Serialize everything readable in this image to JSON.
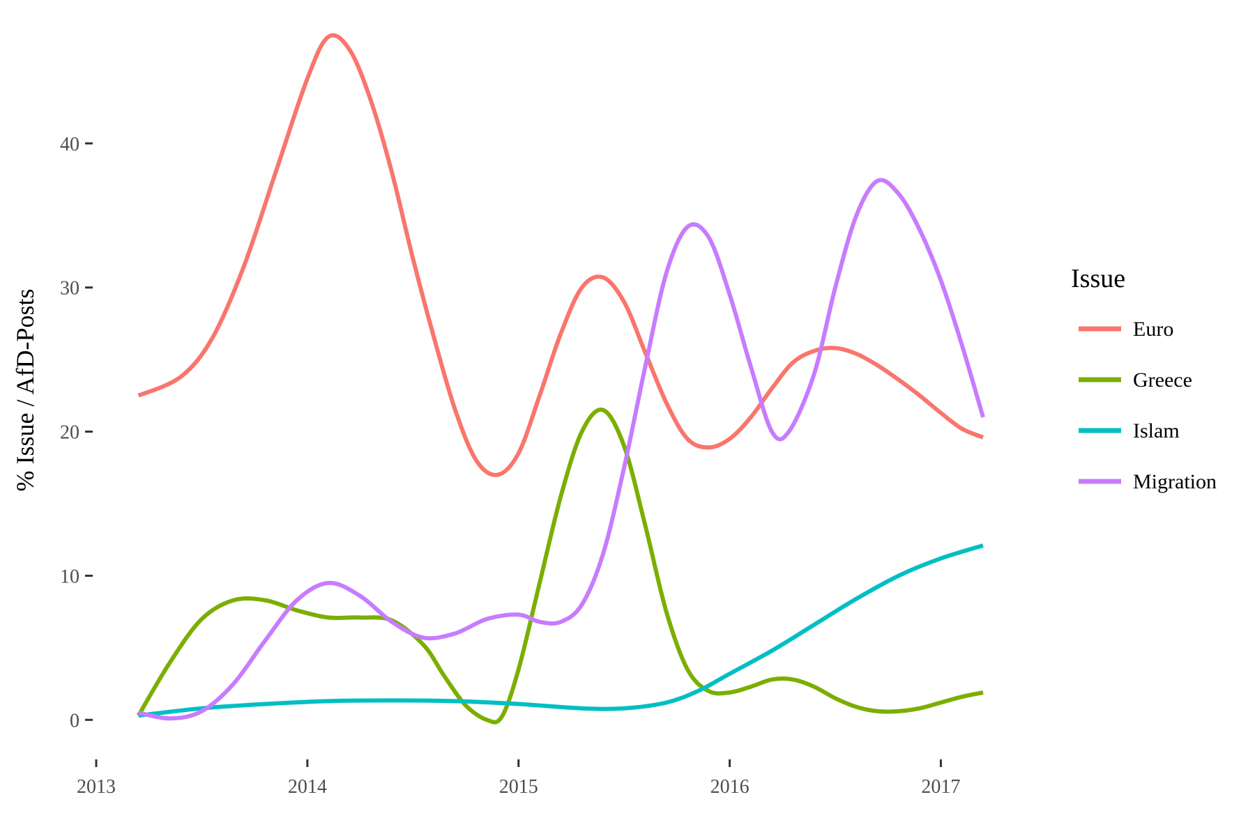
{
  "chart_data": {
    "type": "line",
    "title": "",
    "xlabel": "",
    "ylabel": "% Issue / AfD-Posts",
    "xlim": [
      2013,
      2017.2
    ],
    "ylim": [
      -2.5,
      48.5
    ],
    "x_ticks": [
      2013,
      2014,
      2015,
      2016,
      2017
    ],
    "x_tick_labels": [
      "2013",
      "2014",
      "2015",
      "2016",
      "2017"
    ],
    "y_ticks": [
      0,
      10,
      20,
      30,
      40
    ],
    "y_tick_labels": [
      "0",
      "10",
      "20",
      "30",
      "40"
    ],
    "grid": false,
    "legend": {
      "title": "Issue",
      "placement": "right"
    },
    "series": [
      {
        "name": "Euro",
        "color": "#F8766D",
        "points": [
          [
            2013.2,
            22.5
          ],
          [
            2013.4,
            23.8
          ],
          [
            2013.55,
            26.5
          ],
          [
            2013.7,
            31.5
          ],
          [
            2013.85,
            38.0
          ],
          [
            2014.0,
            44.5
          ],
          [
            2014.1,
            47.4
          ],
          [
            2014.2,
            46.5
          ],
          [
            2014.3,
            43.0
          ],
          [
            2014.4,
            38.0
          ],
          [
            2014.5,
            32.0
          ],
          [
            2014.6,
            26.5
          ],
          [
            2014.7,
            21.5
          ],
          [
            2014.8,
            18.0
          ],
          [
            2014.9,
            17.0
          ],
          [
            2015.0,
            18.5
          ],
          [
            2015.1,
            22.5
          ],
          [
            2015.2,
            26.8
          ],
          [
            2015.3,
            30.0
          ],
          [
            2015.4,
            30.7
          ],
          [
            2015.5,
            29.0
          ],
          [
            2015.6,
            25.5
          ],
          [
            2015.7,
            22.0
          ],
          [
            2015.8,
            19.5
          ],
          [
            2015.9,
            18.9
          ],
          [
            2016.0,
            19.5
          ],
          [
            2016.1,
            21.0
          ],
          [
            2016.2,
            23.0
          ],
          [
            2016.3,
            24.8
          ],
          [
            2016.4,
            25.6
          ],
          [
            2016.5,
            25.8
          ],
          [
            2016.6,
            25.4
          ],
          [
            2016.7,
            24.6
          ],
          [
            2016.8,
            23.6
          ],
          [
            2016.9,
            22.5
          ],
          [
            2017.0,
            21.3
          ],
          [
            2017.1,
            20.2
          ],
          [
            2017.2,
            19.6
          ]
        ]
      },
      {
        "name": "Greece",
        "color": "#7CAE00",
        "points": [
          [
            2013.2,
            0.3
          ],
          [
            2013.35,
            4.0
          ],
          [
            2013.5,
            7.0
          ],
          [
            2013.65,
            8.3
          ],
          [
            2013.8,
            8.3
          ],
          [
            2013.95,
            7.6
          ],
          [
            2014.1,
            7.1
          ],
          [
            2014.25,
            7.1
          ],
          [
            2014.4,
            6.9
          ],
          [
            2014.55,
            5.2
          ],
          [
            2014.65,
            3.0
          ],
          [
            2014.75,
            1.0
          ],
          [
            2014.85,
            0.0
          ],
          [
            2014.92,
            0.2
          ],
          [
            2015.0,
            3.5
          ],
          [
            2015.1,
            9.5
          ],
          [
            2015.2,
            15.5
          ],
          [
            2015.3,
            20.0
          ],
          [
            2015.4,
            21.5
          ],
          [
            2015.5,
            19.0
          ],
          [
            2015.6,
            13.5
          ],
          [
            2015.7,
            7.5
          ],
          [
            2015.8,
            3.5
          ],
          [
            2015.9,
            2.0
          ],
          [
            2016.0,
            1.9
          ],
          [
            2016.1,
            2.3
          ],
          [
            2016.2,
            2.8
          ],
          [
            2016.3,
            2.8
          ],
          [
            2016.4,
            2.3
          ],
          [
            2016.5,
            1.5
          ],
          [
            2016.6,
            0.9
          ],
          [
            2016.7,
            0.6
          ],
          [
            2016.8,
            0.6
          ],
          [
            2016.9,
            0.8
          ],
          [
            2017.0,
            1.2
          ],
          [
            2017.1,
            1.6
          ],
          [
            2017.2,
            1.9
          ]
        ]
      },
      {
        "name": "Islam",
        "color": "#00BFC4",
        "points": [
          [
            2013.2,
            0.3
          ],
          [
            2013.5,
            0.8
          ],
          [
            2013.8,
            1.1
          ],
          [
            2014.1,
            1.3
          ],
          [
            2014.4,
            1.35
          ],
          [
            2014.7,
            1.3
          ],
          [
            2015.0,
            1.1
          ],
          [
            2015.3,
            0.8
          ],
          [
            2015.5,
            0.8
          ],
          [
            2015.7,
            1.2
          ],
          [
            2015.85,
            2.0
          ],
          [
            2016.0,
            3.2
          ],
          [
            2016.2,
            4.8
          ],
          [
            2016.4,
            6.6
          ],
          [
            2016.6,
            8.4
          ],
          [
            2016.8,
            10.0
          ],
          [
            2017.0,
            11.2
          ],
          [
            2017.2,
            12.1
          ]
        ]
      },
      {
        "name": "Migration",
        "color": "#C77CFF",
        "points": [
          [
            2013.2,
            0.5
          ],
          [
            2013.35,
            0.1
          ],
          [
            2013.5,
            0.6
          ],
          [
            2013.65,
            2.5
          ],
          [
            2013.8,
            5.5
          ],
          [
            2013.95,
            8.3
          ],
          [
            2014.1,
            9.5
          ],
          [
            2014.25,
            8.6
          ],
          [
            2014.4,
            6.8
          ],
          [
            2014.55,
            5.7
          ],
          [
            2014.7,
            6.0
          ],
          [
            2014.85,
            7.0
          ],
          [
            2015.0,
            7.3
          ],
          [
            2015.1,
            6.8
          ],
          [
            2015.2,
            6.8
          ],
          [
            2015.3,
            8.0
          ],
          [
            2015.4,
            11.5
          ],
          [
            2015.5,
            17.5
          ],
          [
            2015.6,
            24.5
          ],
          [
            2015.7,
            31.0
          ],
          [
            2015.8,
            34.2
          ],
          [
            2015.9,
            33.5
          ],
          [
            2016.0,
            29.5
          ],
          [
            2016.1,
            24.5
          ],
          [
            2016.2,
            20.0
          ],
          [
            2016.28,
            20.0
          ],
          [
            2016.4,
            24.0
          ],
          [
            2016.5,
            30.0
          ],
          [
            2016.6,
            35.0
          ],
          [
            2016.7,
            37.4
          ],
          [
            2016.8,
            36.5
          ],
          [
            2016.9,
            34.0
          ],
          [
            2017.0,
            30.5
          ],
          [
            2017.1,
            26.0
          ],
          [
            2017.2,
            21.0
          ]
        ]
      }
    ]
  }
}
